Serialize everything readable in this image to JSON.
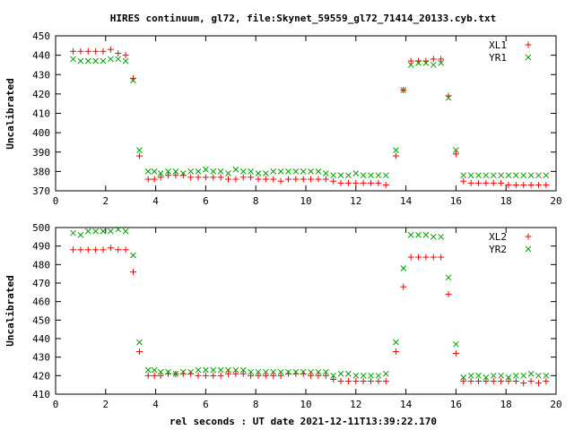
{
  "title": "HIRES continuum, gl72, file:Skynet_59559_gl72_71414_20133.cyb.txt",
  "xlabel": "rel seconds : UT date 2021-12-11T13:39:22.170",
  "colors": {
    "red": "#ff0000",
    "green": "#00a000",
    "axis": "#000000"
  },
  "chart_data": [
    {
      "type": "scatter",
      "ylabel": "Uncalibrated",
      "xlim": [
        0,
        20
      ],
      "ylim": [
        370,
        450
      ],
      "xticks": [
        "0",
        "2",
        "4",
        "6",
        "8",
        "10",
        "12",
        "14",
        "16",
        "18",
        "20"
      ],
      "yticks": [
        "370",
        "380",
        "390",
        "400",
        "410",
        "420",
        "430",
        "440",
        "450"
      ],
      "grid": false,
      "legend_position": "top-right",
      "series": [
        {
          "name": "XL1",
          "marker": "+",
          "color": "#ff0000",
          "x": [
            0.7,
            1.0,
            1.3,
            1.6,
            1.9,
            2.2,
            2.5,
            2.8,
            3.1,
            3.35,
            3.7,
            3.95,
            4.2,
            4.5,
            4.8,
            5.1,
            5.4,
            5.7,
            6.0,
            6.3,
            6.6,
            6.9,
            7.2,
            7.5,
            7.8,
            8.1,
            8.4,
            8.7,
            9.0,
            9.3,
            9.6,
            9.9,
            10.2,
            10.5,
            10.8,
            11.1,
            11.4,
            11.7,
            12.0,
            12.3,
            12.6,
            12.9,
            13.2,
            13.6,
            13.9,
            14.2,
            14.5,
            14.8,
            15.1,
            15.4,
            15.7,
            16.0,
            16.3,
            16.6,
            16.9,
            17.2,
            17.5,
            17.8,
            18.1,
            18.4,
            18.7,
            19.0,
            19.3,
            19.6
          ],
          "y": [
            442,
            442,
            442,
            442,
            442,
            443,
            441,
            440,
            428,
            388,
            376,
            376,
            377,
            378,
            378,
            378,
            377,
            377,
            377,
            377,
            377,
            376,
            376,
            377,
            377,
            376,
            376,
            376,
            375,
            376,
            376,
            376,
            376,
            376,
            376,
            375,
            374,
            374,
            374,
            374,
            374,
            374,
            373,
            388,
            422,
            437,
            437,
            437,
            438,
            438,
            419,
            389,
            375,
            374,
            374,
            374,
            374,
            374,
            373,
            373,
            373,
            373,
            373,
            373
          ]
        },
        {
          "name": "YR1",
          "marker": "x",
          "color": "#00a000",
          "x": [
            0.7,
            1.0,
            1.3,
            1.6,
            1.9,
            2.2,
            2.5,
            2.8,
            3.1,
            3.35,
            3.7,
            3.95,
            4.2,
            4.5,
            4.8,
            5.1,
            5.4,
            5.7,
            6.0,
            6.3,
            6.6,
            6.9,
            7.2,
            7.5,
            7.8,
            8.1,
            8.4,
            8.7,
            9.0,
            9.3,
            9.6,
            9.9,
            10.2,
            10.5,
            10.8,
            11.1,
            11.4,
            11.7,
            12.0,
            12.3,
            12.6,
            12.9,
            13.2,
            13.6,
            13.9,
            14.2,
            14.5,
            14.8,
            15.1,
            15.4,
            15.7,
            16.0,
            16.3,
            16.6,
            16.9,
            17.2,
            17.5,
            17.8,
            18.1,
            18.4,
            18.7,
            19.0,
            19.3,
            19.6
          ],
          "y": [
            438,
            437,
            437,
            437,
            437,
            438,
            438,
            437,
            427,
            391,
            380,
            380,
            379,
            380,
            380,
            379,
            380,
            380,
            381,
            380,
            380,
            379,
            381,
            380,
            380,
            379,
            379,
            380,
            380,
            380,
            380,
            380,
            380,
            380,
            379,
            378,
            378,
            378,
            379,
            378,
            378,
            378,
            378,
            391,
            422,
            435,
            436,
            436,
            435,
            436,
            418,
            391,
            378,
            378,
            378,
            378,
            378,
            378,
            378,
            378,
            378,
            378,
            378,
            378
          ]
        }
      ]
    },
    {
      "type": "scatter",
      "ylabel": "Uncalibrated",
      "xlim": [
        0,
        20
      ],
      "ylim": [
        410,
        500
      ],
      "xticks": [
        "0",
        "2",
        "4",
        "6",
        "8",
        "10",
        "12",
        "14",
        "16",
        "18",
        "20"
      ],
      "yticks": [
        "410",
        "420",
        "430",
        "440",
        "450",
        "460",
        "470",
        "480",
        "490",
        "500"
      ],
      "grid": false,
      "legend_position": "top-right",
      "series": [
        {
          "name": "XL2",
          "marker": "+",
          "color": "#ff0000",
          "x": [
            0.7,
            1.0,
            1.3,
            1.6,
            1.9,
            2.2,
            2.5,
            2.8,
            3.1,
            3.35,
            3.7,
            3.95,
            4.2,
            4.5,
            4.8,
            5.1,
            5.4,
            5.7,
            6.0,
            6.3,
            6.6,
            6.9,
            7.2,
            7.5,
            7.8,
            8.1,
            8.4,
            8.7,
            9.0,
            9.3,
            9.6,
            9.9,
            10.2,
            10.5,
            10.8,
            11.1,
            11.4,
            11.7,
            12.0,
            12.3,
            12.6,
            12.9,
            13.2,
            13.6,
            13.9,
            14.2,
            14.5,
            14.8,
            15.1,
            15.4,
            15.7,
            16.0,
            16.3,
            16.6,
            16.9,
            17.2,
            17.5,
            17.8,
            18.1,
            18.4,
            18.7,
            19.0,
            19.3,
            19.6
          ],
          "y": [
            488,
            488,
            488,
            488,
            488,
            489,
            488,
            488,
            476,
            433,
            420,
            420,
            420,
            421,
            421,
            421,
            421,
            420,
            420,
            420,
            420,
            421,
            421,
            421,
            420,
            420,
            420,
            420,
            420,
            421,
            421,
            421,
            420,
            420,
            420,
            418,
            417,
            417,
            417,
            417,
            417,
            417,
            417,
            433,
            468,
            484,
            484,
            484,
            484,
            484,
            464,
            432,
            417,
            417,
            417,
            417,
            417,
            417,
            417,
            417,
            416,
            417,
            416,
            417
          ]
        },
        {
          "name": "YR2",
          "marker": "x",
          "color": "#00a000",
          "x": [
            0.7,
            1.0,
            1.3,
            1.6,
            1.9,
            2.2,
            2.5,
            2.8,
            3.1,
            3.35,
            3.7,
            3.95,
            4.2,
            4.5,
            4.8,
            5.1,
            5.4,
            5.7,
            6.0,
            6.3,
            6.6,
            6.9,
            7.2,
            7.5,
            7.8,
            8.1,
            8.4,
            8.7,
            9.0,
            9.3,
            9.6,
            9.9,
            10.2,
            10.5,
            10.8,
            11.1,
            11.4,
            11.7,
            12.0,
            12.3,
            12.6,
            12.9,
            13.2,
            13.6,
            13.9,
            14.2,
            14.5,
            14.8,
            15.1,
            15.4,
            15.7,
            16.0,
            16.3,
            16.6,
            16.9,
            17.2,
            17.5,
            17.8,
            18.1,
            18.4,
            18.7,
            19.0,
            19.3,
            19.6
          ],
          "y": [
            497,
            496,
            498,
            498,
            498,
            498,
            499,
            498,
            485,
            438,
            423,
            423,
            422,
            422,
            421,
            422,
            422,
            423,
            423,
            423,
            423,
            423,
            423,
            423,
            422,
            422,
            422,
            422,
            422,
            422,
            422,
            422,
            422,
            422,
            422,
            420,
            421,
            421,
            420,
            420,
            420,
            420,
            421,
            438,
            478,
            496,
            496,
            496,
            495,
            495,
            473,
            437,
            419,
            420,
            420,
            419,
            420,
            420,
            419,
            420,
            420,
            421,
            420,
            420
          ]
        }
      ]
    }
  ]
}
